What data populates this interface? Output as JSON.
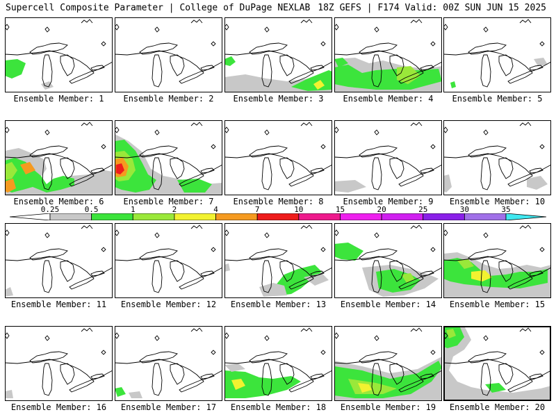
{
  "header": {
    "title": "Supercell Composite Parameter | College of DuPage NEXLAB",
    "run_info": "18Z GEFS | F174 Valid: 00Z SUN JUN 15 2025"
  },
  "legend": {
    "ticks": [
      "0.25",
      "0.5",
      "1",
      "2",
      "4",
      "7",
      "10",
      "15",
      "20",
      "25",
      "30",
      "35"
    ],
    "colors": [
      "#ffffff",
      "#c8c8c8",
      "#3ce43c",
      "#9ae83a",
      "#f2f230",
      "#f59a20",
      "#ee1c1c",
      "#ee1a8c",
      "#ee20ee",
      "#d020f0",
      "#8a20e8",
      "#a070e8",
      "#40e8f0"
    ]
  },
  "panels": [
    {
      "label": "Ensemble Member: 1",
      "highlighted": false
    },
    {
      "label": "Ensemble Member: 2",
      "highlighted": false
    },
    {
      "label": "Ensemble Member: 3",
      "highlighted": false
    },
    {
      "label": "Ensemble Member: 4",
      "highlighted": false
    },
    {
      "label": "Ensemble Member: 5",
      "highlighted": false
    },
    {
      "label": "Ensemble Member: 6",
      "highlighted": false
    },
    {
      "label": "Ensemble Member: 7",
      "highlighted": false
    },
    {
      "label": "Ensemble Member: 8",
      "highlighted": false
    },
    {
      "label": "Ensemble Member: 9",
      "highlighted": false
    },
    {
      "label": "Ensemble Member: 10",
      "highlighted": false
    },
    {
      "label": "Ensemble Member: 11",
      "highlighted": false
    },
    {
      "label": "Ensemble Member: 12",
      "highlighted": false
    },
    {
      "label": "Ensemble Member: 13",
      "highlighted": false
    },
    {
      "label": "Ensemble Member: 14",
      "highlighted": false
    },
    {
      "label": "Ensemble Member: 15",
      "highlighted": false
    },
    {
      "label": "Ensemble Member: 16",
      "highlighted": false
    },
    {
      "label": "Ensemble Member: 17",
      "highlighted": false
    },
    {
      "label": "Ensemble Member: 18",
      "highlighted": false
    },
    {
      "label": "Ensemble Member: 19",
      "highlighted": false
    },
    {
      "label": "Ensemble Member: 20",
      "highlighted": true
    }
  ]
}
